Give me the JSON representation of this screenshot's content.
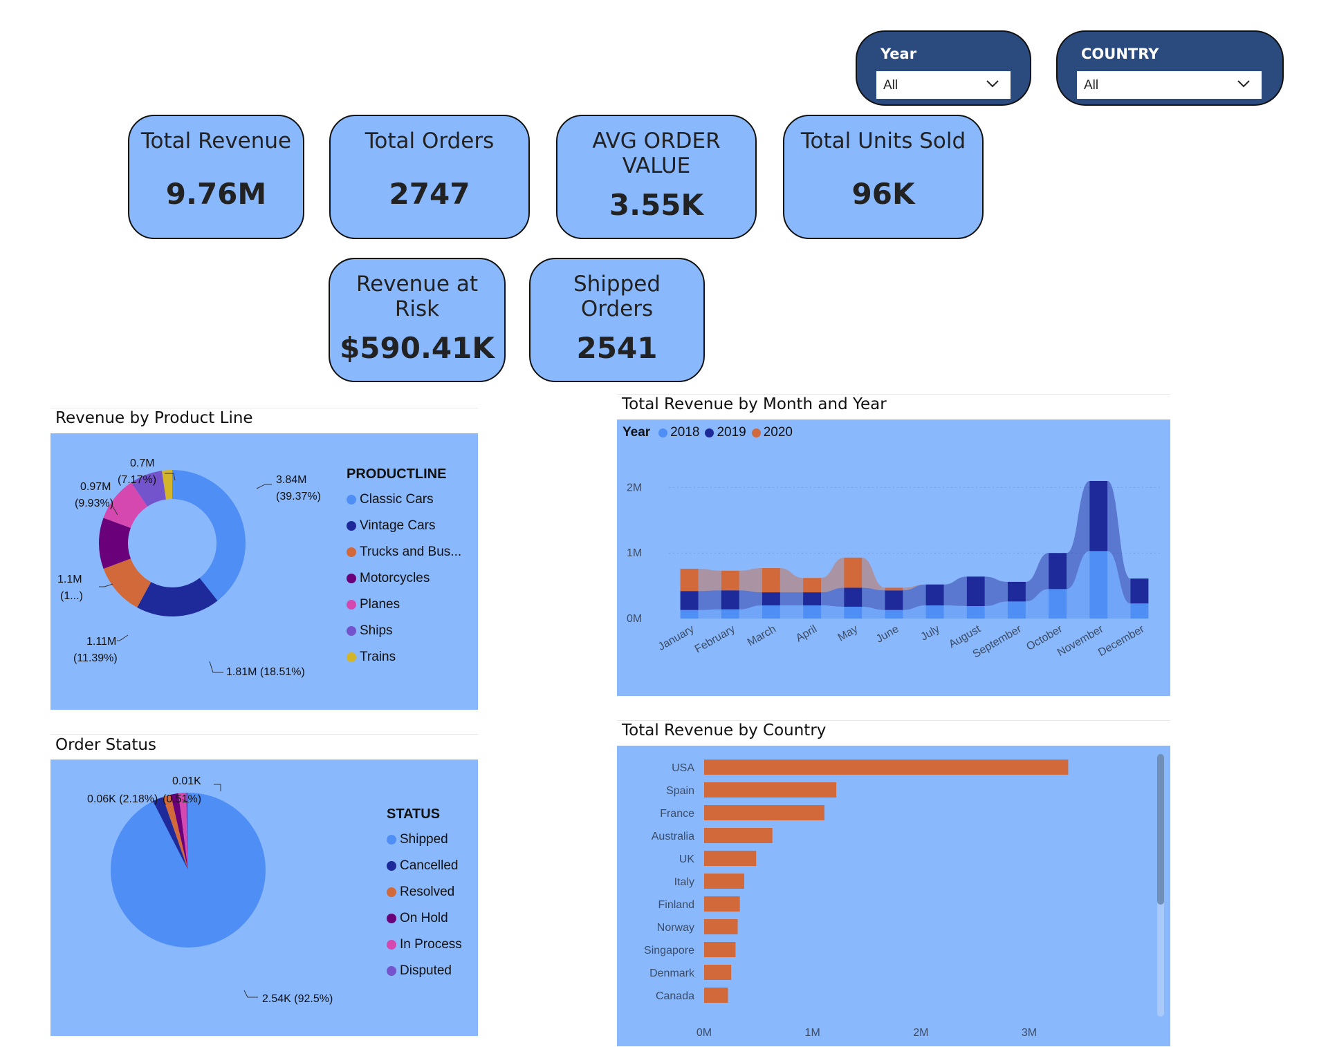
{
  "filters": {
    "year": {
      "label": "Year",
      "value": "All"
    },
    "country": {
      "label": "COUNTRY",
      "value": "All"
    }
  },
  "kpis": {
    "total_revenue": {
      "title": "Total Revenue",
      "value": "9.76M"
    },
    "total_orders": {
      "title": "Total Orders",
      "value": "2747"
    },
    "avg_order_value": {
      "title_line1": "AVG ORDER",
      "title_line2": "VALUE",
      "value": "3.55K"
    },
    "total_units": {
      "title": "Total Units Sold",
      "value": "96K"
    },
    "revenue_at_risk": {
      "title_line1": "Revenue at",
      "title_line2": "Risk",
      "value": "$590.41K"
    },
    "shipped_orders": {
      "title_line1": "Shipped",
      "title_line2": "Orders",
      "value": "2541"
    }
  },
  "colors": {
    "panel_bg": "#8ab8fc",
    "classic": "#4f8ff5",
    "vintage": "#1e2a9a",
    "trucks": "#d1693a",
    "motorcycles": "#6a007a",
    "planes": "#d448b0",
    "ships": "#7454cc",
    "trains": "#d4b52a",
    "bar": "#d1693a"
  },
  "chart_data": [
    {
      "type": "pie",
      "title": "Revenue by Product Line",
      "legend_title": "PRODUCTLINE",
      "slices": [
        {
          "name": "Classic Cars",
          "value": 3.84,
          "label_line1": "3.84M",
          "label_line2": "(39.37%)",
          "color": "#4f8ff5"
        },
        {
          "name": "Vintage Cars",
          "value": 1.81,
          "label_line1": "1.81M (18.51%)",
          "label_line2": "",
          "color": "#1e2a9a"
        },
        {
          "name": "Trucks and Bus...",
          "value": 1.11,
          "label_line1": "1.11M",
          "label_line2": "(11.39%)",
          "color": "#d1693a"
        },
        {
          "name": "Motorcycles",
          "value": 1.1,
          "label_line1": "1.1M",
          "label_line2": "(1...)",
          "color": "#6a007a"
        },
        {
          "name": "Planes",
          "value": 0.97,
          "label_line1": "0.97M",
          "label_line2": "(9.93%)",
          "color": "#d448b0"
        },
        {
          "name": "Ships",
          "value": 0.7,
          "label_line1": "0.7M",
          "label_line2": "(7.17%)",
          "color": "#7454cc"
        },
        {
          "name": "Trains",
          "value": 0.22,
          "label_line1": "",
          "label_line2": "",
          "color": "#d4b52a"
        }
      ]
    },
    {
      "type": "pie",
      "title": "Order Status",
      "legend_title": "STATUS",
      "slices": [
        {
          "name": "Shipped",
          "value": 92.5,
          "color": "#4f8ff5"
        },
        {
          "name": "Cancelled",
          "value": 2.18,
          "color": "#1e2a9a"
        },
        {
          "name": "Resolved",
          "value": 1.71,
          "color": "#d1693a"
        },
        {
          "name": "On Hold",
          "value": 1.6,
          "color": "#6a007a"
        },
        {
          "name": "In Process",
          "value": 1.5,
          "color": "#d448b0"
        },
        {
          "name": "Disputed",
          "value": 0.51,
          "color": "#7454cc"
        }
      ],
      "labels": {
        "shipped": "2.54K (92.5%)",
        "cancelled": "0.06K (2.18%)",
        "disputed_pct": "(0.51%)",
        "disputed_val": "0.01K"
      }
    },
    {
      "type": "bar",
      "title": "Total Revenue by Month and Year",
      "legend_title": "Year",
      "categories": [
        "January",
        "February",
        "March",
        "April",
        "May",
        "June",
        "July",
        "August",
        "September",
        "October",
        "November",
        "December"
      ],
      "series": [
        {
          "name": "2018",
          "color": "#4f8ff5",
          "values": [
            0.13,
            0.14,
            0.2,
            0.2,
            0.18,
            0.13,
            0.2,
            0.19,
            0.26,
            0.45,
            1.03,
            0.23
          ]
        },
        {
          "name": "2019",
          "color": "#1e2a9a",
          "values": [
            0.29,
            0.29,
            0.2,
            0.2,
            0.29,
            0.3,
            0.32,
            0.45,
            0.3,
            0.55,
            1.07,
            0.38
          ]
        },
        {
          "name": "2020",
          "color": "#d1693a",
          "values": [
            0.34,
            0.3,
            0.37,
            0.22,
            0.46,
            0.04,
            0,
            0,
            0,
            0,
            0,
            0
          ]
        }
      ],
      "y_ticks": [
        "0M",
        "1M",
        "2M"
      ],
      "ylim": [
        0,
        2.3
      ]
    },
    {
      "type": "bar",
      "orientation": "horizontal",
      "title": "Total Revenue by Country",
      "categories": [
        "USA",
        "Spain",
        "France",
        "Australia",
        "UK",
        "Italy",
        "Finland",
        "Norway",
        "Singapore",
        "Denmark",
        "Canada"
      ],
      "values": [
        3.36,
        1.22,
        1.11,
        0.63,
        0.48,
        0.37,
        0.33,
        0.31,
        0.29,
        0.25,
        0.22
      ],
      "x_ticks": [
        "0M",
        "1M",
        "2M",
        "3M"
      ],
      "xlim": [
        0,
        3.6
      ]
    }
  ]
}
